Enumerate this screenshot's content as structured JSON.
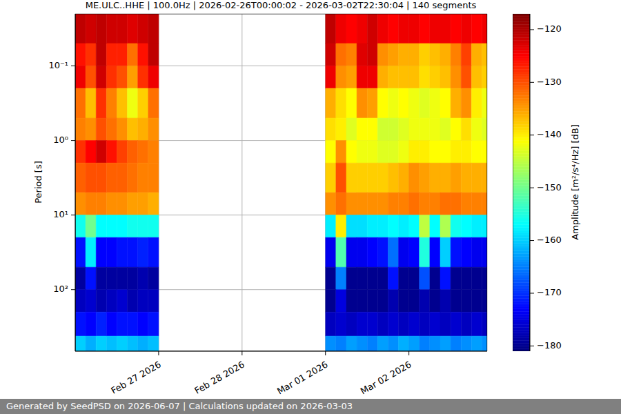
{
  "chart_data": {
    "type": "heatmap",
    "title": "ME.ULC..HHE | 100.0Hz | 2026-02-26T00:00:02 - 2026-03-02T22:30:04 | 140 segments",
    "footer": "Generated by SeedPSD on 2026-06-07 | Calculations updated on 2026-03-03",
    "y_label": "Period [s]",
    "log": "y",
    "grid": true,
    "xlim": [
      0,
      118.5
    ],
    "xticks": [
      {
        "value": 24,
        "label": "Feb 27 2026"
      },
      {
        "value": 48,
        "label": "Feb 28 2026"
      },
      {
        "value": 72,
        "label": "Mar 01 2026"
      },
      {
        "value": 96,
        "label": "Mar 02 2026"
      }
    ],
    "ylim": [
      670,
      0.02
    ],
    "yticks": [
      {
        "value": 0.1,
        "label": "10⁻¹"
      },
      {
        "value": 1,
        "label": "10⁰"
      },
      {
        "value": 10,
        "label": "10¹"
      },
      {
        "value": 100,
        "label": "10²"
      }
    ],
    "x_bins": [
      [
        0,
        3
      ],
      [
        3,
        6
      ],
      [
        6,
        9
      ],
      [
        9,
        12
      ],
      [
        12,
        15
      ],
      [
        15,
        18
      ],
      [
        18,
        21
      ],
      [
        21,
        24
      ],
      [
        72,
        75
      ],
      [
        75,
        78
      ],
      [
        78,
        81
      ],
      [
        81,
        84
      ],
      [
        84,
        87
      ],
      [
        87,
        90
      ],
      [
        90,
        93
      ],
      [
        93,
        96
      ],
      [
        96,
        99
      ],
      [
        99,
        102
      ],
      [
        102,
        105
      ],
      [
        105,
        108
      ],
      [
        108,
        111
      ],
      [
        111,
        114
      ],
      [
        114,
        117
      ],
      [
        117,
        118.5
      ]
    ],
    "y_bins": [
      0.02,
      0.05,
      0.1,
      0.2,
      0.5,
      1,
      2,
      5,
      10,
      20,
      50,
      100,
      200,
      420,
      670
    ],
    "values": [
      [
        -121,
        -122,
        -121,
        -122,
        -122,
        -123,
        -122,
        -121,
        -121,
        -124,
        -125,
        -124,
        -122,
        -124,
        -125,
        -124,
        -124,
        -125,
        -124,
        -124,
        -125,
        -124,
        -125,
        -124
      ],
      [
        -126,
        -128,
        -121,
        -127,
        -127,
        -132,
        -126,
        -121,
        -122,
        -132,
        -133,
        -123,
        -122,
        -134,
        -135,
        -136,
        -136,
        -138,
        -137,
        -136,
        -133,
        -129,
        -136,
        -137
      ],
      [
        -124,
        -130,
        -122,
        -128,
        -130,
        -135,
        -128,
        -124,
        -124,
        -134,
        -135,
        -124,
        -124,
        -136,
        -137,
        -137,
        -137,
        -139,
        -138,
        -137,
        -134,
        -130,
        -137,
        -138
      ],
      [
        -132,
        -137,
        -128,
        -133,
        -137,
        -142,
        -138,
        -132,
        -136,
        -139,
        -141,
        -134,
        -135,
        -141,
        -142,
        -141,
        -142,
        -143,
        -142,
        -141,
        -136,
        -134,
        -140,
        -142
      ],
      [
        -133,
        -134,
        -130,
        -132,
        -134,
        -137,
        -136,
        -134,
        -139,
        -140,
        -143,
        -141,
        -141,
        -144,
        -144,
        -143,
        -142,
        -142,
        -142,
        -143,
        -141,
        -139,
        -142,
        -143
      ],
      [
        -128,
        -125,
        -122,
        -126,
        -129,
        -131,
        -132,
        -133,
        -141,
        -134,
        -141,
        -142,
        -142,
        -143,
        -143,
        -142,
        -140,
        -140,
        -141,
        -141,
        -140,
        -140,
        -141,
        -141
      ],
      [
        -131,
        -130,
        -130,
        -131,
        -131,
        -132,
        -133,
        -133,
        -138,
        -130,
        -138,
        -138,
        -138,
        -138,
        -137,
        -136,
        -134,
        -135,
        -136,
        -136,
        -135,
        -136,
        -136,
        -136
      ],
      [
        -134,
        -133,
        -133,
        -134,
        -134,
        -135,
        -135,
        -136,
        -134,
        -132,
        -134,
        -134,
        -134,
        -134,
        -133,
        -133,
        -132,
        -133,
        -133,
        -132,
        -132,
        -133,
        -133,
        -133
      ],
      [
        -156,
        -150,
        -157,
        -157,
        -157,
        -156,
        -156,
        -156,
        -158,
        -140,
        -159,
        -159,
        -158,
        -158,
        -157,
        -158,
        -157,
        -145,
        -157,
        -146,
        -156,
        -157,
        -158,
        -158
      ],
      [
        -172,
        -158,
        -173,
        -173,
        -172,
        -172,
        -171,
        -172,
        -174,
        -152,
        -174,
        -174,
        -173,
        -172,
        -166,
        -174,
        -173,
        -155,
        -173,
        -160,
        -172,
        -173,
        -174,
        -174
      ],
      [
        -179,
        -172,
        -179,
        -179,
        -179,
        -179,
        -178,
        -179,
        -180,
        -165,
        -180,
        -180,
        -180,
        -180,
        -172,
        -180,
        -180,
        -168,
        -180,
        -172,
        -180,
        -180,
        -180,
        -180
      ],
      [
        -177,
        -176,
        -178,
        -177,
        -176,
        -178,
        -177,
        -177,
        -180,
        -175,
        -180,
        -180,
        -180,
        -180,
        -178,
        -180,
        -180,
        -178,
        -180,
        -178,
        -180,
        -180,
        -180,
        -180
      ],
      [
        -172,
        -173,
        -171,
        -173,
        -172,
        -172,
        -173,
        -172,
        -177,
        -176,
        -177,
        -176,
        -176,
        -177,
        -176,
        -177,
        -176,
        -177,
        -176,
        -177,
        -176,
        -177,
        -176,
        -177
      ],
      [
        -160,
        -162,
        -160,
        -161,
        -160,
        -161,
        -162,
        -161,
        -164,
        -165,
        -163,
        -164,
        -165,
        -163,
        -164,
        -162,
        -163,
        -165,
        -164,
        -163,
        -165,
        -164,
        -163,
        -164
      ]
    ],
    "colorbar": {
      "label": "Amplitude [m²/s⁴/Hz] [dB]",
      "range": [
        -181,
        -117
      ],
      "ticks": [
        {
          "value": -180,
          "label": "−180"
        },
        {
          "value": -170,
          "label": "−170"
        },
        {
          "value": -160,
          "label": "−160"
        },
        {
          "value": -150,
          "label": "−150"
        },
        {
          "value": -140,
          "label": "−140"
        },
        {
          "value": -130,
          "label": "−130"
        },
        {
          "value": -120,
          "label": "−120"
        }
      ]
    }
  }
}
